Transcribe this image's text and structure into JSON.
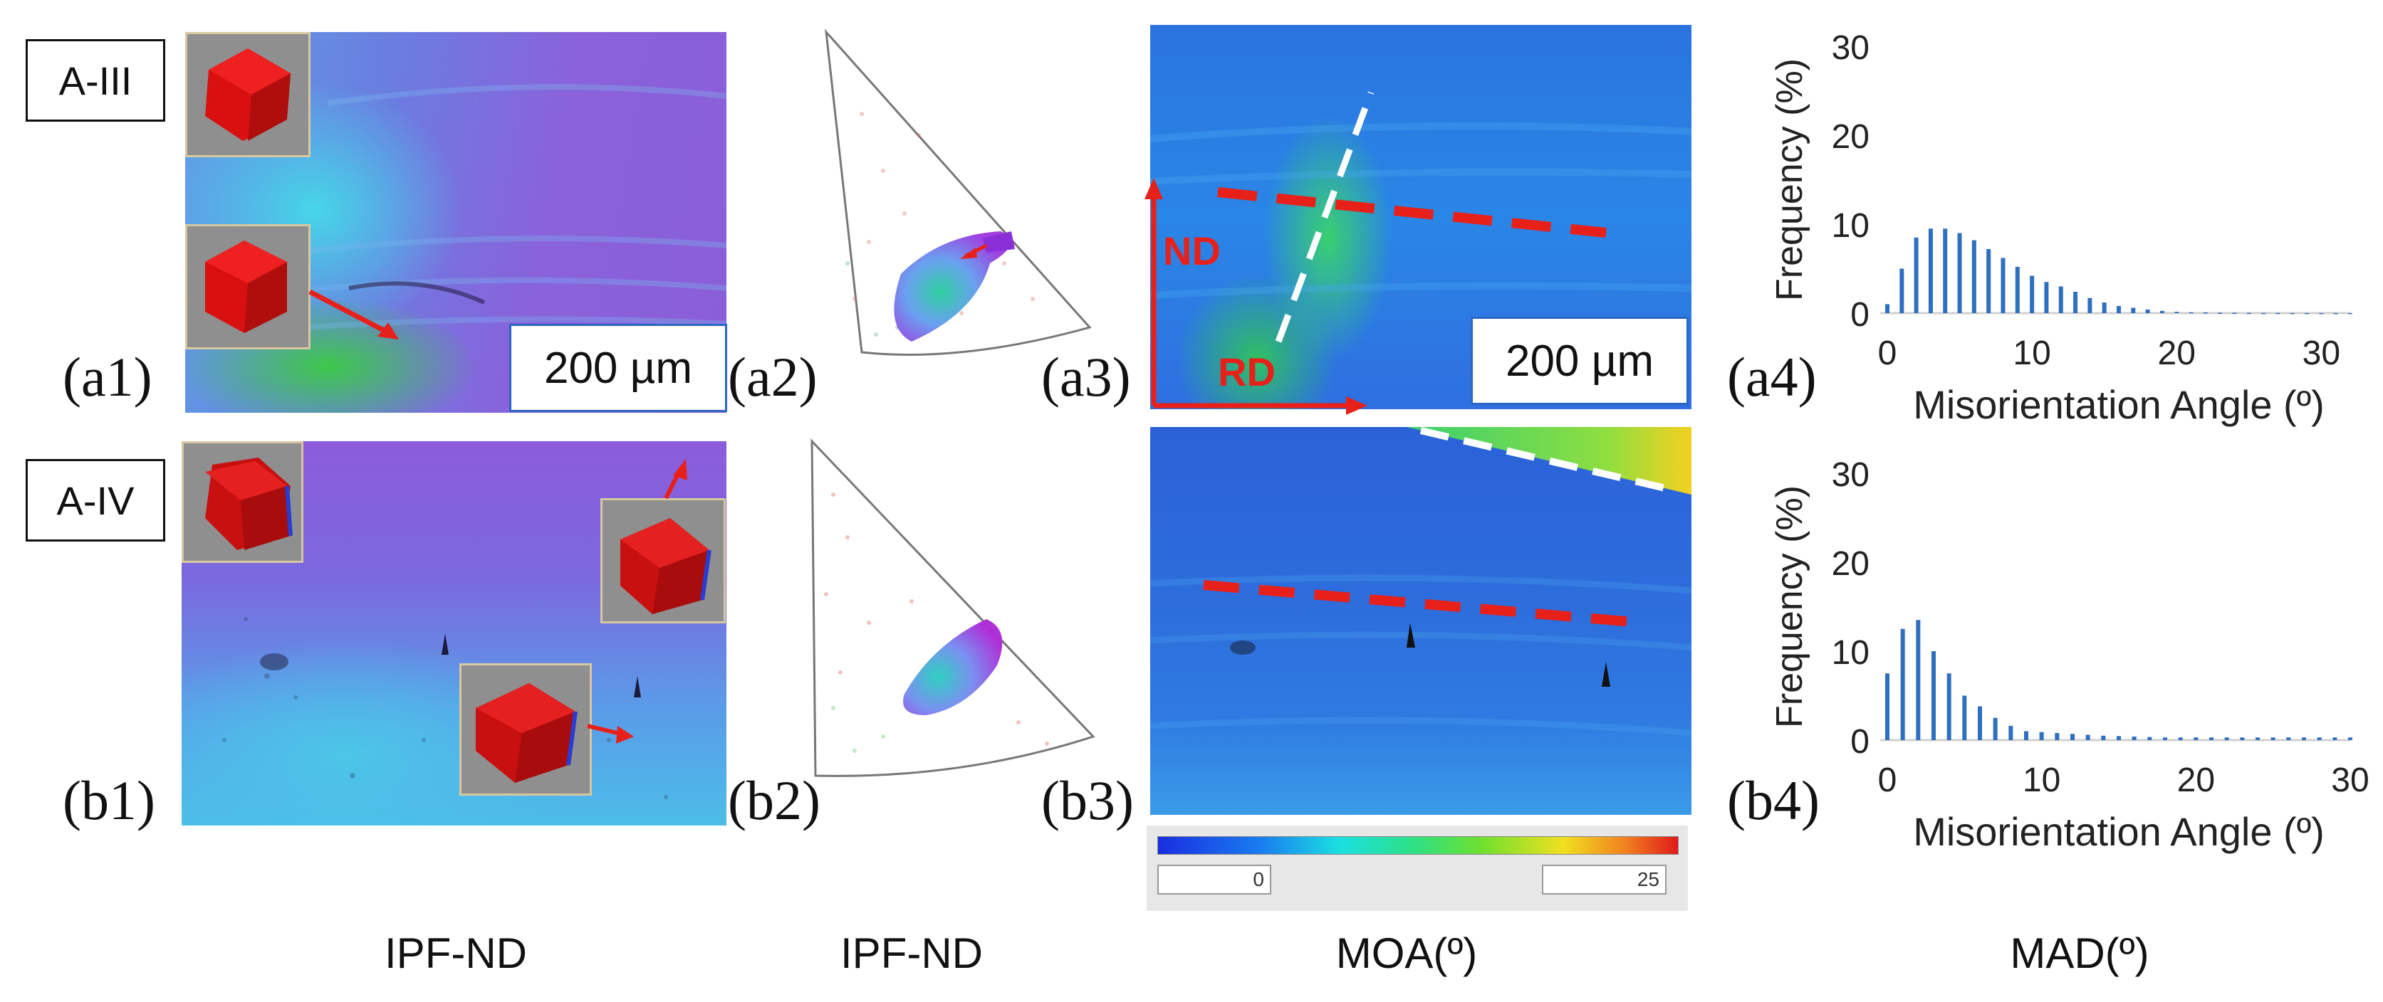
{
  "samples": [
    "A-III",
    "A-IV"
  ],
  "panel_labels": {
    "a1": "(a1)",
    "a2": "(a2)",
    "a3": "(a3)",
    "a4": "(a4)",
    "b1": "(b1)",
    "b2": "(b2)",
    "b3": "(b3)",
    "b4": "(b4)"
  },
  "scale_bar": "200 µm",
  "axes_labels": {
    "nd": "ND",
    "rd": "RD"
  },
  "colorbar": {
    "min": "0",
    "max": "25"
  },
  "column_labels": [
    "IPF-ND",
    "IPF-ND",
    "MOA(º)",
    "MAD(º)"
  ],
  "colors": {
    "accent_red": "#e8201a",
    "bar_blue": "#2f6fc0",
    "scale_border": "#2a66c4"
  },
  "chart_data": [
    {
      "type": "bar",
      "panel": "(a4)",
      "xlabel": "Misorientation Angle (º)",
      "ylabel": "Frequency (%)",
      "xlim": [
        0,
        32
      ],
      "ylim": [
        0,
        30
      ],
      "xticks": [
        0,
        10,
        20,
        30
      ],
      "yticks": [
        0,
        10,
        20,
        30
      ],
      "x": [
        0,
        1,
        2,
        3,
        4,
        5,
        6,
        7,
        8,
        9,
        10,
        11,
        12,
        13,
        14,
        15,
        16,
        17,
        18,
        19,
        20,
        21,
        22,
        23,
        24,
        25,
        26,
        27,
        28,
        29,
        30,
        31,
        32
      ],
      "values": [
        1.0,
        5.0,
        8.5,
        9.5,
        9.5,
        9.0,
        8.2,
        7.2,
        6.2,
        5.2,
        4.2,
        3.5,
        3.0,
        2.4,
        1.7,
        1.2,
        0.8,
        0.6,
        0.4,
        0.25,
        0.15,
        0.1,
        0.08,
        0.05,
        0.04,
        0.03,
        0.02,
        0.02,
        0.01,
        0.01,
        0.01,
        0.01,
        0.01
      ]
    },
    {
      "type": "bar",
      "panel": "(b4)",
      "xlabel": "Misorientation Angle (º)",
      "ylabel": "Frequency (%)",
      "xlim": [
        0,
        30
      ],
      "ylim": [
        0,
        30
      ],
      "xticks": [
        0,
        10,
        20,
        30
      ],
      "yticks": [
        0,
        10,
        20,
        30
      ],
      "x": [
        0,
        1,
        2,
        3,
        4,
        5,
        6,
        7,
        8,
        9,
        10,
        11,
        12,
        13,
        14,
        15,
        16,
        17,
        18,
        19,
        20,
        21,
        22,
        23,
        24,
        25,
        26,
        27,
        28,
        29,
        30
      ],
      "values": [
        7.5,
        12.5,
        13.5,
        10.0,
        7.5,
        5.0,
        3.8,
        2.5,
        1.6,
        1.0,
        0.9,
        0.8,
        0.7,
        0.6,
        0.5,
        0.45,
        0.4,
        0.35,
        0.3,
        0.3,
        0.3,
        0.3,
        0.3,
        0.3,
        0.3,
        0.3,
        0.3,
        0.3,
        0.3,
        0.3,
        0.3
      ]
    }
  ]
}
